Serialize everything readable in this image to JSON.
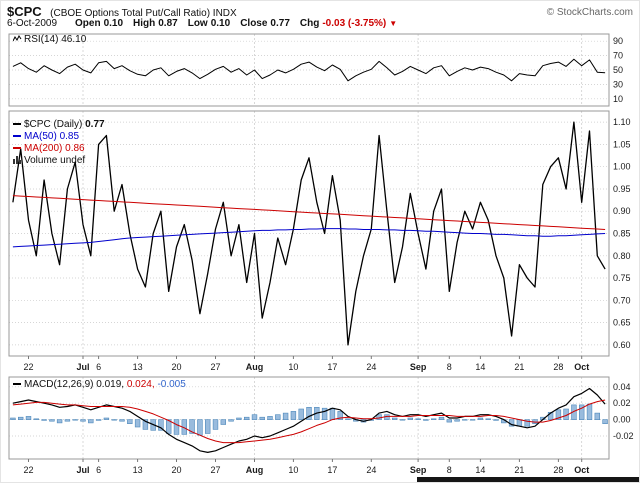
{
  "header": {
    "symbol": "$CPC",
    "title": "(CBOE Options Total Put/Call Ratio) INDX",
    "copyright": "© StockCharts.com",
    "date": "6-Oct-2009",
    "ohlc": [
      {
        "label": "Open",
        "value": "0.10"
      },
      {
        "label": "High",
        "value": "0.87"
      },
      {
        "label": "Low",
        "value": "0.10"
      },
      {
        "label": "Close",
        "value": "0.77"
      },
      {
        "label": "Chg",
        "value": "-0.03 (-3.75%)",
        "color": "#cc0000"
      }
    ],
    "change_direction_icon": "▼"
  },
  "legends": {
    "rsi_label": "RSI(14)",
    "rsi_value": "46.10",
    "price_label": "$CPC (Daily)",
    "price_value": "0.77",
    "ma50_label": "MA(50)",
    "ma50_value": "0.85",
    "ma200_label": "MA(200)",
    "ma200_value": "0.86",
    "volume_label": "Volume undef",
    "macd_label": "MACD(12,26,9)",
    "macd_value": "0.019,",
    "macd_signal_value": "0.024,",
    "macd_hist_value": "-0.005"
  },
  "colors": {
    "price": "#000000",
    "ma50": "#0000cc",
    "ma200": "#cc0000",
    "macd_line": "#000000",
    "macd_signal": "#cc0000",
    "macd_hist_fill": "#99bbdd",
    "macd_hist_stroke": "#4d88bb",
    "hist_value_color": "#3366cc",
    "grid": "#c8c8c8",
    "panel_border": "#999999",
    "axis_text": "#1a1a1a",
    "chg": "#cc0000",
    "copyright": "#666666"
  },
  "x_axis": {
    "n_points": 77,
    "ticks": [
      {
        "i": 2,
        "label": "22",
        "bold": false
      },
      {
        "i": 9,
        "label": "Jul",
        "bold": true
      },
      {
        "i": 11,
        "label": "6",
        "bold": false
      },
      {
        "i": 16,
        "label": "13",
        "bold": false
      },
      {
        "i": 21,
        "label": "20",
        "bold": false
      },
      {
        "i": 26,
        "label": "27",
        "bold": false
      },
      {
        "i": 31,
        "label": "Aug",
        "bold": true
      },
      {
        "i": 36,
        "label": "10",
        "bold": false
      },
      {
        "i": 41,
        "label": "17",
        "bold": false
      },
      {
        "i": 46,
        "label": "24",
        "bold": false
      },
      {
        "i": 52,
        "label": "Sep",
        "bold": true
      },
      {
        "i": 56,
        "label": "8",
        "bold": false
      },
      {
        "i": 60,
        "label": "14",
        "bold": false
      },
      {
        "i": 65,
        "label": "21",
        "bold": false
      },
      {
        "i": 70,
        "label": "28",
        "bold": false
      },
      {
        "i": 73,
        "label": "Oct",
        "bold": true
      }
    ]
  },
  "chart_data": [
    {
      "panel": "rsi",
      "type": "line",
      "title": "RSI(14)",
      "current": 46.1,
      "ylim": [
        0,
        100
      ],
      "yticks": [
        "90",
        "70",
        "50",
        "30",
        "10"
      ],
      "series": [
        {
          "name": "RSI(14)",
          "color": "#000000",
          "width": 1,
          "values": [
            55,
            60,
            52,
            47,
            56,
            50,
            45,
            54,
            58,
            50,
            46,
            60,
            62,
            52,
            56,
            49,
            44,
            42,
            50,
            53,
            42,
            48,
            52,
            46,
            38,
            44,
            51,
            55,
            47,
            52,
            43,
            50,
            38,
            43,
            50,
            46,
            51,
            58,
            61,
            54,
            49,
            57,
            51,
            35,
            42,
            47,
            51,
            62,
            53,
            43,
            48,
            55,
            50,
            45,
            53,
            56,
            42,
            48,
            53,
            50,
            54,
            52,
            47,
            43,
            35,
            45,
            43,
            42,
            56,
            59,
            61,
            55,
            65,
            56,
            64,
            47,
            46.1
          ]
        }
      ]
    },
    {
      "panel": "price",
      "type": "line",
      "title": "$CPC (Daily) with MA(50) and MA(200)",
      "ylim": [
        0.575,
        1.125
      ],
      "yticks": [
        "1.10",
        "1.05",
        "1.00",
        "0.95",
        "0.90",
        "0.85",
        "0.80",
        "0.75",
        "0.70",
        "0.65",
        "0.60"
      ],
      "series": [
        {
          "name": "$CPC (Daily)",
          "color": "#000000",
          "width": 1.3,
          "values": [
            0.92,
            1.04,
            0.88,
            0.8,
            0.97,
            0.85,
            0.78,
            0.95,
            1.01,
            0.87,
            0.8,
            1.05,
            1.07,
            0.9,
            0.96,
            0.85,
            0.77,
            0.73,
            0.85,
            0.9,
            0.72,
            0.82,
            0.87,
            0.79,
            0.67,
            0.76,
            0.86,
            0.92,
            0.8,
            0.87,
            0.74,
            0.85,
            0.66,
            0.74,
            0.84,
            0.78,
            0.86,
            0.97,
            1.02,
            0.92,
            0.85,
            0.98,
            0.88,
            0.6,
            0.72,
            0.8,
            0.86,
            1.07,
            0.9,
            0.74,
            0.82,
            0.94,
            0.85,
            0.77,
            0.9,
            0.95,
            0.72,
            0.83,
            0.9,
            0.86,
            0.92,
            0.88,
            0.8,
            0.75,
            0.62,
            0.78,
            0.75,
            0.73,
            0.96,
            1.0,
            1.02,
            0.95,
            1.1,
            0.92,
            1.08,
            0.8,
            0.77
          ]
        },
        {
          "name": "MA(50)",
          "color": "#0000cc",
          "width": 1,
          "values": [
            0.82,
            0.821,
            0.822,
            0.823,
            0.824,
            0.825,
            0.826,
            0.827,
            0.828,
            0.829,
            0.83,
            0.832,
            0.834,
            0.836,
            0.838,
            0.84,
            0.841,
            0.842,
            0.843,
            0.844,
            0.845,
            0.846,
            0.847,
            0.848,
            0.849,
            0.85,
            0.851,
            0.852,
            0.853,
            0.854,
            0.855,
            0.856,
            0.857,
            0.857,
            0.858,
            0.858,
            0.859,
            0.859,
            0.86,
            0.86,
            0.861,
            0.861,
            0.861,
            0.86,
            0.86,
            0.859,
            0.859,
            0.859,
            0.858,
            0.858,
            0.857,
            0.857,
            0.856,
            0.855,
            0.855,
            0.854,
            0.853,
            0.852,
            0.851,
            0.85,
            0.85,
            0.849,
            0.848,
            0.848,
            0.847,
            0.846,
            0.845,
            0.845,
            0.844,
            0.844,
            0.845,
            0.845,
            0.846,
            0.847,
            0.848,
            0.849,
            0.85
          ]
        },
        {
          "name": "MA(200)",
          "color": "#cc0000",
          "width": 1,
          "values": [
            0.935,
            0.934,
            0.933,
            0.932,
            0.931,
            0.93,
            0.929,
            0.928,
            0.927,
            0.926,
            0.925,
            0.924,
            0.923,
            0.922,
            0.921,
            0.92,
            0.919,
            0.918,
            0.917,
            0.916,
            0.915,
            0.914,
            0.913,
            0.912,
            0.911,
            0.91,
            0.909,
            0.908,
            0.907,
            0.906,
            0.905,
            0.904,
            0.903,
            0.902,
            0.901,
            0.9,
            0.899,
            0.898,
            0.897,
            0.896,
            0.895,
            0.894,
            0.893,
            0.892,
            0.891,
            0.89,
            0.889,
            0.888,
            0.887,
            0.886,
            0.885,
            0.884,
            0.883,
            0.882,
            0.881,
            0.88,
            0.879,
            0.878,
            0.877,
            0.876,
            0.875,
            0.874,
            0.873,
            0.872,
            0.871,
            0.87,
            0.869,
            0.868,
            0.867,
            0.866,
            0.865,
            0.864,
            0.863,
            0.862,
            0.861,
            0.86,
            0.859
          ]
        }
      ]
    },
    {
      "panel": "macd",
      "type": "macd",
      "title": "MACD(12,26,9)",
      "current": {
        "macd": 0.019,
        "signal": 0.024,
        "hist": -0.005
      },
      "ylim": [
        -0.048,
        0.052
      ],
      "yticks": [
        "0.04",
        "0.02",
        "0.00",
        "-0.02"
      ],
      "histogram": {
        "fill": "#99bbdd",
        "stroke": "#4d88bb",
        "note": "bar = macd - signal"
      },
      "series": [
        {
          "name": "MACD",
          "color": "#000000",
          "width": 1.2,
          "values": [
            0.02,
            0.022,
            0.024,
            0.022,
            0.02,
            0.018,
            0.015,
            0.016,
            0.018,
            0.015,
            0.012,
            0.015,
            0.018,
            0.016,
            0.014,
            0.01,
            0.004,
            -0.002,
            -0.006,
            -0.01,
            -0.018,
            -0.024,
            -0.028,
            -0.032,
            -0.038,
            -0.04,
            -0.038,
            -0.034,
            -0.03,
            -0.026,
            -0.024,
            -0.02,
            -0.022,
            -0.02,
            -0.016,
            -0.012,
            -0.008,
            -0.002,
            0.004,
            0.008,
            0.01,
            0.014,
            0.012,
            0.004,
            0.0,
            -0.002,
            0.0,
            0.008,
            0.01,
            0.006,
            0.004,
            0.006,
            0.006,
            0.004,
            0.006,
            0.008,
            0.002,
            0.002,
            0.004,
            0.004,
            0.006,
            0.006,
            0.004,
            0.0,
            -0.006,
            -0.008,
            -0.01,
            -0.008,
            0.0,
            0.008,
            0.014,
            0.018,
            0.028,
            0.032,
            0.038,
            0.03,
            0.019
          ]
        },
        {
          "name": "Signal",
          "color": "#cc0000",
          "width": 1,
          "values": [
            0.018,
            0.019,
            0.02,
            0.021,
            0.021,
            0.02,
            0.019,
            0.018,
            0.018,
            0.017,
            0.016,
            0.016,
            0.016,
            0.016,
            0.016,
            0.015,
            0.013,
            0.01,
            0.007,
            0.003,
            -0.001,
            -0.006,
            -0.01,
            -0.015,
            -0.019,
            -0.023,
            -0.026,
            -0.028,
            -0.028,
            -0.028,
            -0.027,
            -0.026,
            -0.025,
            -0.024,
            -0.022,
            -0.02,
            -0.018,
            -0.015,
            -0.011,
            -0.007,
            -0.004,
            0.0,
            0.002,
            0.003,
            0.002,
            0.001,
            0.001,
            0.002,
            0.004,
            0.004,
            0.004,
            0.004,
            0.005,
            0.005,
            0.005,
            0.005,
            0.005,
            0.004,
            0.004,
            0.004,
            0.004,
            0.005,
            0.005,
            0.004,
            0.002,
            0.0,
            -0.002,
            -0.003,
            -0.003,
            -0.001,
            0.002,
            0.005,
            0.01,
            0.014,
            0.019,
            0.022,
            0.024
          ]
        }
      ]
    }
  ]
}
